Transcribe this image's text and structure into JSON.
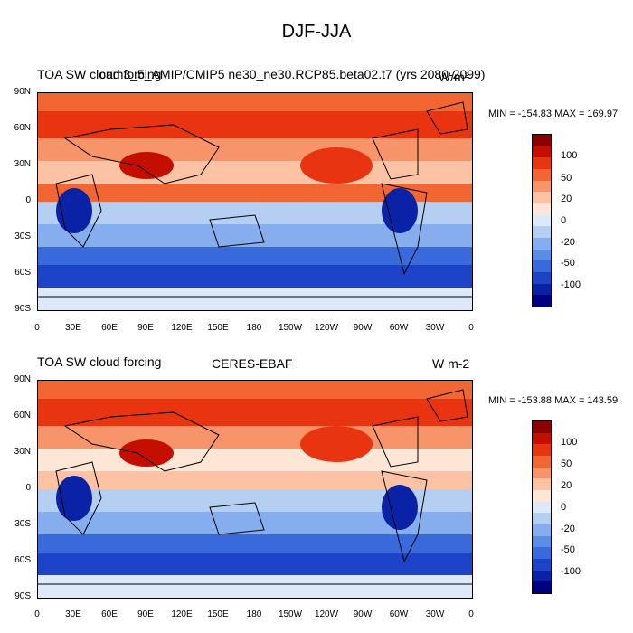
{
  "figure": {
    "title": "DJF-JJA"
  },
  "panels": [
    {
      "left_title": "TOA SW cloud forcing",
      "center_title": "cam3_5_AMIP/CMIP5 ne30_ne30.RCP85.beta02.t7 (yrs 2080-2099)",
      "units": "W/m²",
      "stats": "MIN = -154.83 MAX = 169.97",
      "lat_ticks": [
        "90N",
        "60N",
        "30N",
        "0",
        "30S",
        "60S",
        "90S"
      ],
      "lon_ticks": [
        "0",
        "30E",
        "60E",
        "90E",
        "120E",
        "150E",
        "180",
        "150W",
        "120W",
        "90W",
        "60W",
        "30W",
        "0"
      ],
      "colorbar_labels": [
        "100",
        "50",
        "20",
        "0",
        "-20",
        "-50",
        "-100"
      ]
    },
    {
      "left_title": "TOA SW cloud forcing",
      "center_title": "CERES-EBAF",
      "units": "W m-2",
      "stats": "MIN = -153.88 MAX = 143.59",
      "lat_ticks": [
        "90N",
        "60N",
        "30N",
        "0",
        "30S",
        "60S",
        "90S"
      ],
      "lon_ticks": [
        "0",
        "30E",
        "60E",
        "90E",
        "120E",
        "150E",
        "180",
        "150W",
        "120W",
        "90W",
        "60W",
        "30W",
        "0"
      ],
      "colorbar_labels": [
        "100",
        "50",
        "20",
        "0",
        "-20",
        "-50",
        "-100"
      ]
    }
  ],
  "colorbar_colors": [
    "#8b0000",
    "#c40e00",
    "#e83410",
    "#f26634",
    "#f7946a",
    "#fbc3a4",
    "#fde6d6",
    "#dde9f8",
    "#b5cff2",
    "#86adee",
    "#5b8ce6",
    "#3a69dc",
    "#1d43c8",
    "#0a23a6",
    "#000080"
  ],
  "coastline_color": "#000000"
}
